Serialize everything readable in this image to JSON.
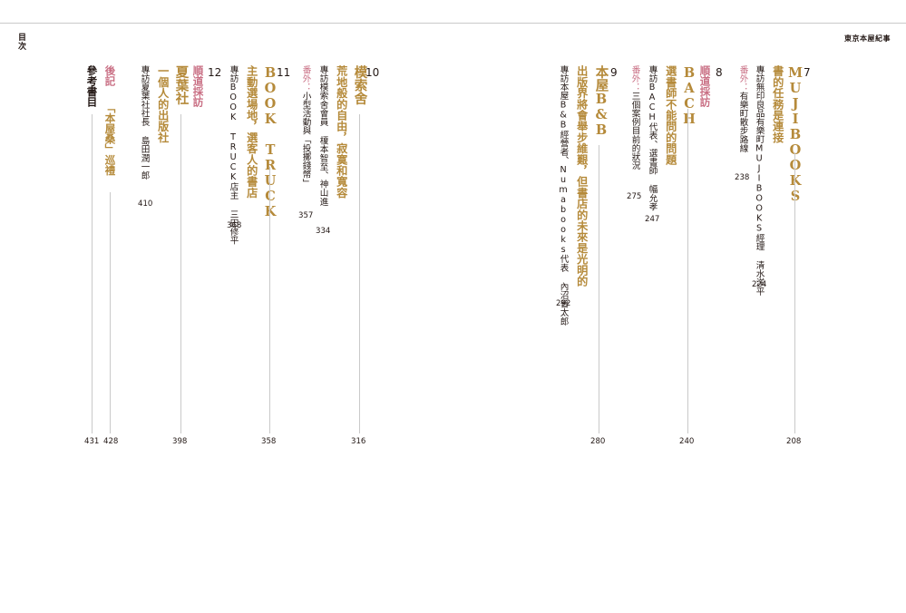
{
  "header": {
    "side_label": "目次",
    "book_title": "東京本屋紀事"
  },
  "right_page": {
    "ch7": {
      "number": "7",
      "title": "MUJIBOOKS",
      "subtitle": "書的任務是連接",
      "interview": "專訪無印良品有樂町MUJIBOOKS經理 清水洋平",
      "extra": "番外：有樂町散步路線",
      "page_start": "208",
      "page_interview": "224",
      "page_extra": "238"
    },
    "ch8": {
      "number": "8",
      "title": "BACH",
      "subtitle": "選書師不能問的問題",
      "label": "順道採訪",
      "interview": "專訪BACH代表、選書師 幅允孝",
      "extra": "番外：三個案例目前的狀況",
      "page_start": "240",
      "page_interview": "247",
      "page_extra": "275"
    },
    "ch9": {
      "number": "9",
      "title": "本屋B&B",
      "subtitle": "出版界將會舉步維艱，但書店的未來是光明的",
      "interview": "專訪本屋B&B經營者、Numabooks代表 內沼晉太郎",
      "page_start": "280",
      "page_interview": "292"
    }
  },
  "left_page": {
    "ch10": {
      "number": "10",
      "title": "模索舍",
      "subtitle": "荒地般的自由，寂寞和寬容",
      "interview": "專訪模索舍會員 榎本智至、神山進",
      "extra": "番外：小型活動與「投擲錢幣」",
      "page_start": "316",
      "page_interview": "334",
      "page_extra": "357"
    },
    "ch11": {
      "number": "11",
      "title": "BOOK TRUCK",
      "subtitle": "主動選場地，選客人的書店",
      "interview": "專訪BOOK TRUCK店主 三田修平",
      "page_start": "358",
      "page_interview": "368"
    },
    "ch12": {
      "number": "12",
      "title": "夏葉社",
      "subtitle": "一個人的出版社",
      "label": "順道採訪",
      "interview": "專訪夏葉社社長 島田潤一郎",
      "page_start": "398",
      "page_interview": "410"
    },
    "afterword": {
      "label": "後記",
      "title": "「本屋桑」巡禮",
      "page": "428"
    },
    "references": {
      "title": "參考書目",
      "page": "431"
    }
  }
}
